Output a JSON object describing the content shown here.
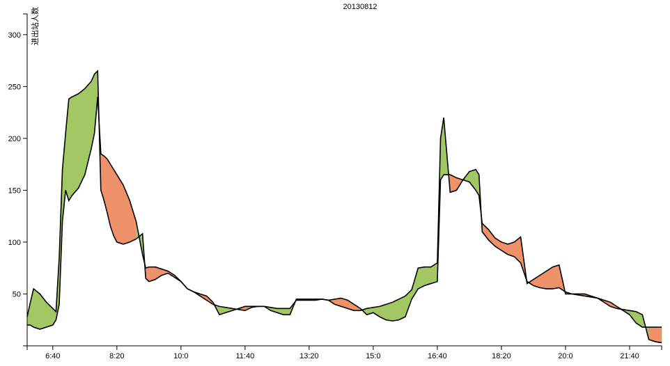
{
  "chart_data": {
    "type": "area",
    "title": "20130812",
    "ylabel": "进出站人数",
    "xlabel": "",
    "ylim": [
      0,
      320
    ],
    "yticks": [
      50,
      100,
      150,
      200,
      250,
      300
    ],
    "xticks": [
      "6:40",
      "8:20",
      "10:0",
      "11:40",
      "13:20",
      "15:0",
      "16:40",
      "18:20",
      "20:0",
      "21:40"
    ],
    "xlim": [
      "6:00",
      "22:30"
    ],
    "grid": false,
    "colors": {
      "green_band": "#a3c863",
      "orange_band": "#ef9169",
      "line": "#000000"
    },
    "series": [
      {
        "x": [
          "6:00",
          "6:05",
          "6:10",
          "6:20",
          "6:30",
          "6:40",
          "6:45",
          "6:50",
          "6:55",
          "7:00",
          "7:05",
          "7:10",
          "7:20",
          "7:30",
          "7:40",
          "7:45",
          "7:50",
          "7:55",
          "8:00",
          "8:05",
          "8:10",
          "8:15",
          "8:20",
          "8:30",
          "8:40",
          "8:50",
          "9:00",
          "9:05",
          "9:10",
          "9:20",
          "9:30",
          "9:40",
          "9:50",
          "10:00",
          "10:10",
          "10:20",
          "10:30",
          "10:40",
          "10:50",
          "11:00",
          "11:10",
          "11:20",
          "11:30",
          "11:40",
          "11:50",
          "12:00",
          "12:10",
          "12:20",
          "12:30",
          "12:40",
          "12:50",
          "13:00",
          "13:10",
          "13:20",
          "13:30",
          "13:40",
          "13:50",
          "14:00",
          "14:10",
          "14:20",
          "14:30",
          "14:40",
          "14:50",
          "15:00",
          "15:10",
          "15:20",
          "15:30",
          "15:40",
          "15:50",
          "16:00",
          "16:10",
          "16:20",
          "16:30",
          "16:40",
          "16:45",
          "16:50",
          "17:00",
          "17:10",
          "17:20",
          "17:30",
          "17:40",
          "17:45",
          "17:50",
          "18:00",
          "18:10",
          "18:20",
          "18:30",
          "18:40",
          "18:50",
          "19:00",
          "19:10",
          "19:20",
          "19:30",
          "19:40",
          "19:50",
          "20:00",
          "20:10",
          "20:20",
          "20:30",
          "20:40",
          "20:50",
          "21:00",
          "21:10",
          "21:20",
          "21:30",
          "21:40",
          "21:50",
          "22:00",
          "22:10",
          "22:20",
          "22:30"
        ],
        "values": [
          28,
          42,
          55,
          50,
          42,
          36,
          33,
          85,
          170,
          205,
          238,
          240,
          243,
          248,
          255,
          262,
          265,
          150,
          140,
          128,
          115,
          106,
          100,
          98,
          100,
          103,
          108,
          65,
          62,
          64,
          68,
          70,
          66,
          62,
          55,
          52,
          48,
          44,
          40,
          38,
          37,
          36,
          35,
          34,
          37,
          38,
          38,
          37,
          36,
          36,
          36,
          44,
          44,
          44,
          44,
          45,
          44,
          40,
          38,
          36,
          34,
          34,
          36,
          37,
          38,
          40,
          42,
          45,
          48,
          54,
          75,
          76,
          76,
          80,
          200,
          220,
          148,
          150,
          160,
          168,
          170,
          165,
          110,
          102,
          96,
          92,
          88,
          86,
          80,
          62,
          58,
          56,
          55,
          55,
          56,
          52,
          50,
          49,
          48,
          47,
          46,
          42,
          38,
          36,
          35,
          34,
          33,
          30,
          6,
          4,
          3
        ]
      },
      {
        "x": [
          "6:00",
          "6:05",
          "6:10",
          "6:20",
          "6:30",
          "6:40",
          "6:45",
          "6:50",
          "6:55",
          "7:00",
          "7:05",
          "7:10",
          "7:20",
          "7:30",
          "7:40",
          "7:45",
          "7:50",
          "7:55",
          "8:00",
          "8:05",
          "8:10",
          "8:15",
          "8:20",
          "8:30",
          "8:40",
          "8:50",
          "9:00",
          "9:05",
          "9:10",
          "9:20",
          "9:30",
          "9:40",
          "9:50",
          "10:00",
          "10:10",
          "10:20",
          "10:30",
          "10:40",
          "10:50",
          "11:00",
          "11:10",
          "11:20",
          "11:30",
          "11:40",
          "11:50",
          "12:00",
          "12:10",
          "12:20",
          "12:30",
          "12:40",
          "12:50",
          "13:00",
          "13:10",
          "13:20",
          "13:30",
          "13:40",
          "13:50",
          "14:00",
          "14:10",
          "14:20",
          "14:30",
          "14:40",
          "14:50",
          "15:00",
          "15:10",
          "15:20",
          "15:30",
          "15:40",
          "15:50",
          "16:00",
          "16:10",
          "16:20",
          "16:30",
          "16:40",
          "16:45",
          "16:50",
          "17:00",
          "17:10",
          "17:20",
          "17:30",
          "17:40",
          "17:45",
          "17:50",
          "18:00",
          "18:10",
          "18:20",
          "18:30",
          "18:40",
          "18:50",
          "19:00",
          "19:10",
          "19:20",
          "19:30",
          "19:40",
          "19:50",
          "20:00",
          "20:10",
          "20:20",
          "20:30",
          "20:40",
          "20:50",
          "21:00",
          "21:10",
          "21:20",
          "21:30",
          "21:40",
          "21:50",
          "22:00",
          "22:10",
          "22:20",
          "22:30"
        ],
        "values": [
          20,
          20,
          18,
          16,
          18,
          20,
          25,
          40,
          120,
          150,
          140,
          145,
          152,
          165,
          190,
          205,
          240,
          185,
          183,
          180,
          175,
          170,
          165,
          155,
          140,
          120,
          88,
          75,
          76,
          76,
          74,
          72,
          68,
          62,
          55,
          52,
          50,
          48,
          42,
          30,
          32,
          34,
          36,
          38,
          38,
          38,
          38,
          34,
          32,
          30,
          30,
          45,
          45,
          45,
          45,
          45,
          44,
          45,
          46,
          44,
          40,
          36,
          30,
          32,
          28,
          25,
          24,
          25,
          28,
          45,
          55,
          58,
          60,
          62,
          160,
          165,
          165,
          162,
          160,
          158,
          150,
          145,
          118,
          112,
          104,
          100,
          98,
          100,
          105,
          60,
          64,
          68,
          72,
          76,
          78,
          50,
          50,
          50,
          50,
          48,
          46,
          44,
          42,
          38,
          34,
          30,
          22,
          18,
          18,
          18,
          18
        ]
      }
    ]
  }
}
